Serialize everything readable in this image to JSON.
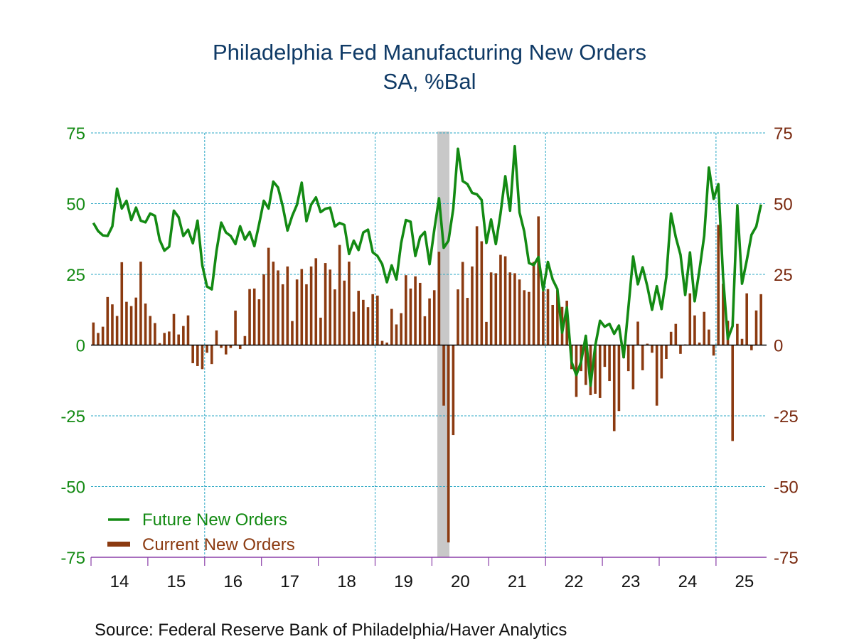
{
  "chart_data": {
    "type": "bar+line",
    "title": "Philadelphia Fed Manufacturing New Orders",
    "subtitle": "SA, %Bal",
    "source": "Source:  Federal Reserve Bank of Philadelphia/Haver Analytics",
    "frequency": "monthly",
    "start": "2014-01",
    "end": "2025-10",
    "ylim": [
      -75,
      75
    ],
    "yticks_left": [
      "75",
      "50",
      "25",
      "0",
      "-25",
      "-50",
      "-75"
    ],
    "yticks_right": [
      "75",
      "50",
      "25",
      "0",
      "-25",
      "-50",
      "-75"
    ],
    "ytick_values": [
      75,
      50,
      25,
      0,
      -25,
      -50,
      -75
    ],
    "xticks": [
      "14",
      "15",
      "16",
      "17",
      "18",
      "19",
      "20",
      "21",
      "22",
      "23",
      "24",
      "25"
    ],
    "grid": true,
    "recession_shading": {
      "start": "2020-02",
      "end": "2020-04"
    },
    "legend": {
      "placement": "bottom-left",
      "entries": [
        "Future New Orders",
        "Current New Orders"
      ]
    },
    "colors": {
      "future": "#138a13",
      "current": "#8b3a10",
      "grid": "#2aa7c4",
      "axis": "#8a3fa8",
      "recession": "#c8c8c8",
      "title": "#0f3a66"
    },
    "series": [
      {
        "name": "Future New Orders",
        "type": "line",
        "values": [
          43.2,
          40.3,
          38.8,
          38.6,
          42.0,
          55.3,
          48.3,
          51.0,
          44.2,
          48.6,
          44.0,
          43.4,
          46.5,
          45.7,
          37.2,
          33.4,
          34.8,
          47.5,
          45.2,
          38.6,
          40.8,
          36.0,
          44.0,
          28.2,
          20.7,
          19.7,
          33.2,
          43.3,
          39.8,
          38.6,
          35.7,
          42.0,
          37.3,
          40.0,
          35.0,
          42.8,
          51.0,
          48.3,
          57.8,
          55.7,
          49.0,
          40.5,
          45.7,
          49.6,
          57.4,
          43.8,
          49.7,
          52.2,
          47.0,
          48.2,
          48.6,
          41.9,
          43.2,
          42.5,
          32.2,
          36.9,
          33.6,
          39.8,
          40.8,
          32.8,
          31.5,
          28.6,
          22.2,
          28.2,
          23.2,
          36.0,
          44.2,
          43.6,
          31.5,
          38.2,
          40.0,
          28.6,
          40.7,
          51.9,
          34.4,
          36.9,
          48.2,
          69.4,
          58.0,
          56.9,
          53.8,
          53.3,
          51.3,
          36.1,
          44.4,
          35.7,
          46.5,
          59.7,
          47.5,
          70.3,
          46.9,
          40.2,
          29.0,
          28.3,
          31.1,
          19.4,
          29.4,
          23.2,
          19.8,
          4.4,
          13.3,
          -6.0,
          -10.6,
          -6.0,
          3.3,
          -14.3,
          -0.2,
          8.6,
          6.5,
          7.5,
          4.0,
          6.9,
          -4.3,
          13.2,
          31.3,
          21.5,
          27.5,
          20.7,
          12.5,
          20.8,
          12.75,
          24.0,
          46.5,
          38.2,
          31.9,
          17.75,
          32.75,
          15.5,
          26.5,
          38.6,
          62.75,
          51.7,
          56.9,
          24.0,
          2.2,
          6.7,
          49.4,
          21.7,
          30.0,
          39.0,
          41.9,
          49.7
        ]
      },
      {
        "name": "Current New Orders",
        "type": "bar",
        "values": [
          8.0,
          4.3,
          6.5,
          17.0,
          14.4,
          10.3,
          29.3,
          15.3,
          13.8,
          16.8,
          29.5,
          14.7,
          10.3,
          7.8,
          0.7,
          4.3,
          4.8,
          11.0,
          3.75,
          6.75,
          10.5,
          -6.4,
          -7.4,
          -8.5,
          -2.7,
          -6.7,
          5.2,
          -1.0,
          -3.3,
          -1.0,
          12.2,
          -1.4,
          3.2,
          19.8,
          20.0,
          16.2,
          25.0,
          34.4,
          29.5,
          26.4,
          21.5,
          27.8,
          8.5,
          23.2,
          26.9,
          21.5,
          27.8,
          30.7,
          9.7,
          29.0,
          26.7,
          19.7,
          35.4,
          22.8,
          29.5,
          11.8,
          19.2,
          16.0,
          13.4,
          18.0,
          17.5,
          1.5,
          0.9,
          12.8,
          7.3,
          11.3,
          24.7,
          20.0,
          24.3,
          22.0,
          10.2,
          16.5,
          19.4,
          33.0,
          -21.4,
          -69.75,
          -31.8,
          19.7,
          29.4,
          16.7,
          27.8,
          42.0,
          36.7,
          8.2,
          25.7,
          25.4,
          31.9,
          31.4,
          25.7,
          25.4,
          23.2,
          19.4,
          18.8,
          29.4,
          45.5,
          19.0,
          19.8,
          14.2,
          19.4,
          13.5,
          15.7,
          -8.5,
          -18.3,
          -9.2,
          -14.1,
          -17.7,
          -17.2,
          -18.7,
          -7.7,
          -12.7,
          -30.4,
          -23.3,
          -4.6,
          -9.2,
          -15.6,
          8.3,
          -8.9,
          0.5,
          -2.7,
          -21.4,
          -11.8,
          -4.9,
          4.7,
          7.5,
          -3.1,
          0.25,
          18.3,
          10.5,
          0.9,
          11.75,
          5.5,
          -3.7,
          42.5,
          21.7,
          8.6,
          -33.9,
          7.5,
          2.2,
          18.3,
          -1.8,
          12.25,
          18.0
        ]
      }
    ]
  }
}
